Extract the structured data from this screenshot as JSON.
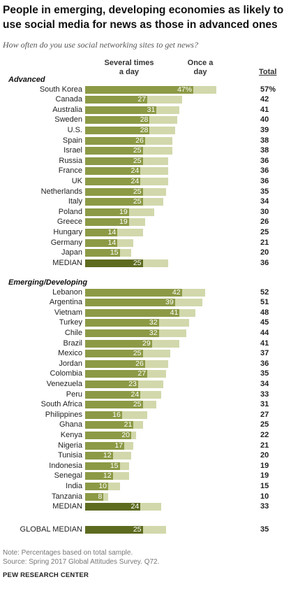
{
  "title": "People in emerging, developing economies as likely to use social media for news as those in advanced ones",
  "subtitle": "How often do you use social networking sites to get news?",
  "headers": {
    "several": "Several times a day",
    "once": "Once a day",
    "total": "Total"
  },
  "notes": {
    "note": "Note: Percentages based on total sample.",
    "source": "Source: Spring 2017 Global Attitudes Survey. Q72.",
    "org": "PEW RESEARCH CENTER"
  },
  "colors": {
    "several_times": "#8c9a46",
    "once_a_day": "#d2d8ab",
    "median": "#5d6b1f"
  },
  "chart_data": {
    "type": "bar",
    "orientation": "horizontal",
    "stacked": true,
    "series_names": [
      "Several times a day",
      "Once a day"
    ],
    "sections": [
      {
        "label": "Advanced",
        "rows": [
          {
            "name": "South Korea",
            "several": 47,
            "total": 57,
            "label": "47%",
            "total_label": "57%"
          },
          {
            "name": "Canada",
            "several": 27,
            "total": 42,
            "label": "27",
            "total_label": "42"
          },
          {
            "name": "Australia",
            "several": 31,
            "total": 41,
            "label": "31",
            "total_label": "41"
          },
          {
            "name": "Sweden",
            "several": 28,
            "total": 40,
            "label": "28",
            "total_label": "40"
          },
          {
            "name": "U.S.",
            "several": 28,
            "total": 39,
            "label": "28",
            "total_label": "39"
          },
          {
            "name": "Spain",
            "several": 26,
            "total": 38,
            "label": "26",
            "total_label": "38"
          },
          {
            "name": "Israel",
            "several": 25,
            "total": 38,
            "label": "25",
            "total_label": "38"
          },
          {
            "name": "Russia",
            "several": 25,
            "total": 36,
            "label": "25",
            "total_label": "36"
          },
          {
            "name": "France",
            "several": 24,
            "total": 36,
            "label": "24",
            "total_label": "36"
          },
          {
            "name": "UK",
            "several": 24,
            "total": 36,
            "label": "24",
            "total_label": "36"
          },
          {
            "name": "Netherlands",
            "several": 25,
            "total": 35,
            "label": "25",
            "total_label": "35"
          },
          {
            "name": "Italy",
            "several": 25,
            "total": 34,
            "label": "25",
            "total_label": "34"
          },
          {
            "name": "Poland",
            "several": 19,
            "total": 30,
            "label": "19",
            "total_label": "30"
          },
          {
            "name": "Greece",
            "several": 19,
            "total": 26,
            "label": "19",
            "total_label": "26"
          },
          {
            "name": "Hungary",
            "several": 14,
            "total": 25,
            "label": "14",
            "total_label": "25"
          },
          {
            "name": "Germany",
            "several": 14,
            "total": 21,
            "label": "14",
            "total_label": "21"
          },
          {
            "name": "Japan",
            "several": 15,
            "total": 20,
            "label": "15",
            "total_label": "20"
          },
          {
            "name": "MEDIAN",
            "several": 25,
            "total": 36,
            "label": "25",
            "total_label": "36",
            "median": true
          }
        ]
      },
      {
        "label": "Emerging/Developing",
        "rows": [
          {
            "name": "Lebanon",
            "several": 42,
            "total": 52,
            "label": "42",
            "total_label": "52"
          },
          {
            "name": "Argentina",
            "several": 39,
            "total": 51,
            "label": "39",
            "total_label": "51"
          },
          {
            "name": "Vietnam",
            "several": 41,
            "total": 48,
            "label": "41",
            "total_label": "48"
          },
          {
            "name": "Turkey",
            "several": 32,
            "total": 45,
            "label": "32",
            "total_label": "45"
          },
          {
            "name": "Chile",
            "several": 32,
            "total": 44,
            "label": "32",
            "total_label": "44"
          },
          {
            "name": "Brazil",
            "several": 29,
            "total": 41,
            "label": "29",
            "total_label": "41"
          },
          {
            "name": "Mexico",
            "several": 25,
            "total": 37,
            "label": "25",
            "total_label": "37"
          },
          {
            "name": "Jordan",
            "several": 26,
            "total": 36,
            "label": "26",
            "total_label": "36"
          },
          {
            "name": "Colombia",
            "several": 27,
            "total": 35,
            "label": "27",
            "total_label": "35"
          },
          {
            "name": "Venezuela",
            "several": 23,
            "total": 34,
            "label": "23",
            "total_label": "34"
          },
          {
            "name": "Peru",
            "several": 24,
            "total": 33,
            "label": "24",
            "total_label": "33"
          },
          {
            "name": "South Africa",
            "several": 25,
            "total": 31,
            "label": "25",
            "total_label": "31"
          },
          {
            "name": "Philippines",
            "several": 16,
            "total": 27,
            "label": "16",
            "total_label": "27"
          },
          {
            "name": "Ghana",
            "several": 21,
            "total": 25,
            "label": "21",
            "total_label": "25"
          },
          {
            "name": "Kenya",
            "several": 20,
            "total": 22,
            "label": "20",
            "total_label": "22"
          },
          {
            "name": "Nigeria",
            "several": 17,
            "total": 21,
            "label": "17",
            "total_label": "21"
          },
          {
            "name": "Tunisia",
            "several": 12,
            "total": 20,
            "label": "12",
            "total_label": "20"
          },
          {
            "name": "Indonesia",
            "several": 15,
            "total": 19,
            "label": "15",
            "total_label": "19"
          },
          {
            "name": "Senegal",
            "several": 12,
            "total": 19,
            "label": "12",
            "total_label": "19"
          },
          {
            "name": "India",
            "several": 10,
            "total": 15,
            "label": "10",
            "total_label": "15"
          },
          {
            "name": "Tanzania",
            "several": 8,
            "total": 10,
            "label": "8",
            "total_label": "10"
          },
          {
            "name": "MEDIAN",
            "several": 24,
            "total": 33,
            "label": "24",
            "total_label": "33",
            "median": true
          }
        ]
      },
      {
        "label": "",
        "rows": [
          {
            "name": "GLOBAL MEDIAN",
            "several": 25,
            "total": 35,
            "label": "25",
            "total_label": "35",
            "median": true
          }
        ]
      }
    ]
  }
}
